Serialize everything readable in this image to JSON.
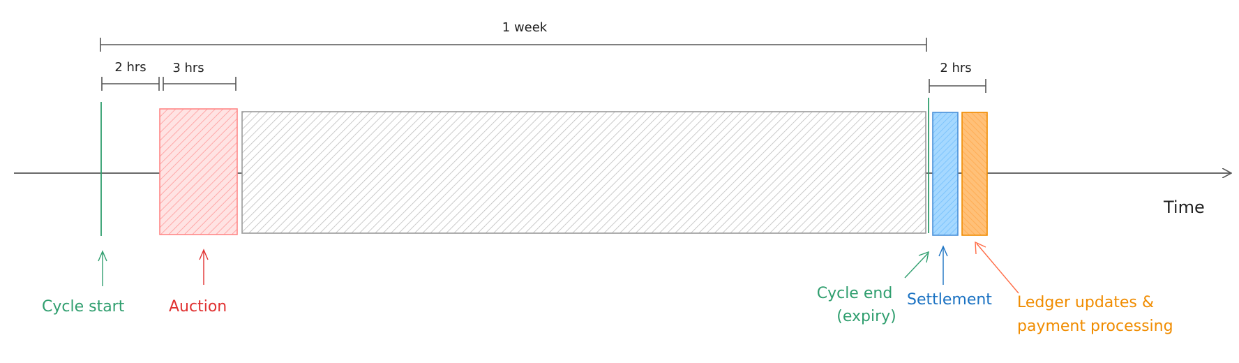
{
  "colors": {
    "ink": "#1e1e1e",
    "axis": "#555555",
    "cycle": "#2f9e6e",
    "auction": "#e03131",
    "auction_fill": "#ffc9c9",
    "period_fill": "#e9ecef",
    "settlement": "#1971c2",
    "settlement_fill": "#a5d8ff",
    "ledger": "#f08c00",
    "ledger_fill": "#ffc078"
  },
  "durations": {
    "week": "1 week",
    "pre_auction": "2 hrs",
    "auction": "3 hrs",
    "post_expiry": "2 hrs"
  },
  "axis": {
    "label": "Time"
  },
  "events": {
    "cycle_start": "Cycle start",
    "auction": "Auction",
    "cycle_end_line1": "Cycle end",
    "cycle_end_line2": "(expiry)",
    "settlement": "Settlement",
    "ledger_line1": "Ledger updates &",
    "ledger_line2": "payment processing"
  }
}
